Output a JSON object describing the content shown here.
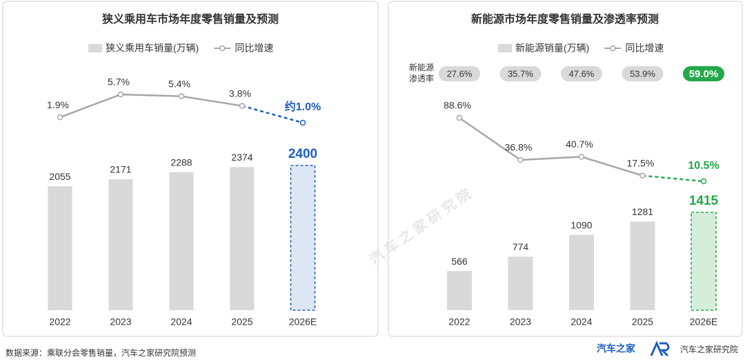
{
  "chart_data": [
    {
      "type": "bar-line",
      "title": "狭义乘用车市场年度零售销量及预测",
      "categories": [
        "2022",
        "2023",
        "2024",
        "2025",
        "2026E"
      ],
      "forecast_color": "#1f5fbf",
      "forecast_fill": "#dde7f3",
      "series": [
        {
          "name": "狭义乘用车销量(万辆)",
          "type": "bar",
          "color": "#d9d9d9",
          "values": [
            2055,
            2171,
            2288,
            2374,
            2400
          ]
        },
        {
          "name": "同比增速",
          "type": "line",
          "color": "#a6a6a6",
          "values": [
            1.9,
            5.7,
            5.4,
            3.8,
            1.0
          ],
          "value_labels": [
            "1.9%",
            "5.7%",
            "5.4%",
            "3.8%",
            "约1.0%"
          ]
        }
      ]
    },
    {
      "type": "bar-line",
      "title": "新能源市场年度零售销量及渗透率预测",
      "categories": [
        "2022",
        "2023",
        "2024",
        "2025",
        "2026E"
      ],
      "forecast_color": "#22a84a",
      "forecast_fill": "#d5eed9",
      "series": [
        {
          "name": "新能源销量(万辆)",
          "type": "bar",
          "color": "#d9d9d9",
          "values": [
            566,
            774,
            1090,
            1281,
            1415
          ]
        },
        {
          "name": "同比增速",
          "type": "line",
          "color": "#a6a6a6",
          "values": [
            88.6,
            36.8,
            40.7,
            17.5,
            10.5
          ],
          "value_labels": [
            "88.6%",
            "36.8%",
            "40.7%",
            "17.5%",
            "10.5%"
          ]
        }
      ],
      "penetration": {
        "label": [
          "新能源",
          "渗透率"
        ],
        "values": [
          27.6,
          35.7,
          47.6,
          53.9,
          59.0
        ],
        "value_labels": [
          "27.6%",
          "35.7%",
          "47.6%",
          "53.9%",
          "59.0%"
        ]
      }
    }
  ],
  "source": "数据来源：乘联分会零售销量，汽车之家研究院预测",
  "logo": "汽车之家",
  "logo_institute": "汽车之家研究院",
  "watermark": "汽 车 之 家 研 究 院"
}
